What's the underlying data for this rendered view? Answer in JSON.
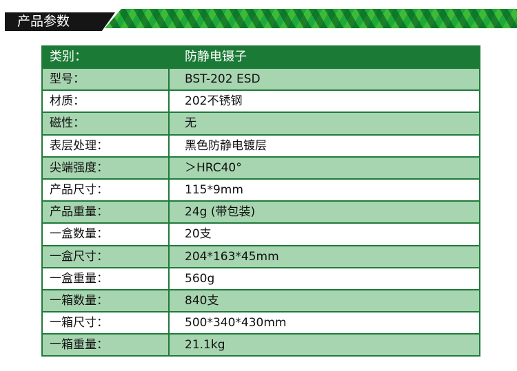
{
  "section_title": "产品参数",
  "header": {
    "label": "类别：",
    "value": "防静电镊子"
  },
  "rows": [
    {
      "label": "型号：",
      "value": "BST-202 ESD"
    },
    {
      "label": "材质：",
      "value": "202不锈钢"
    },
    {
      "label": "磁性：",
      "value": "无"
    },
    {
      "label": "表层处理：",
      "value": "黑色防静电镀层"
    },
    {
      "label": "尖端强度：",
      "value": "＞HRC40°"
    },
    {
      "label": "产品尺寸：",
      "value": "115*9mm"
    },
    {
      "label": "产品重量：",
      "value": "24g (带包装)"
    },
    {
      "label": "一盒数量：",
      "value": "20支"
    },
    {
      "label": "一盒尺寸：",
      "value": "204*163*45mm"
    },
    {
      "label": "一盒重量：",
      "value": "560g"
    },
    {
      "label": "一箱数量：",
      "value": "840支"
    },
    {
      "label": "一箱尺寸：",
      "value": "500*340*430mm"
    },
    {
      "label": "一箱重量：",
      "value": "21.1kg"
    }
  ],
  "colors": {
    "header": "#1b7a35",
    "stripe": "#a7d5b0",
    "banner": "#1ea83a"
  }
}
